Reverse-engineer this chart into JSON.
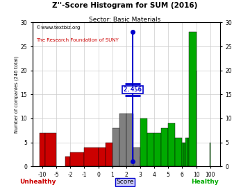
{
  "title": "Z''-Score Histogram for SUM (2016)",
  "subtitle": "Sector: Basic Materials",
  "watermark1": "©www.textbiz.org",
  "watermark2": "The Research Foundation of SUNY",
  "ylabel": "Number of companies (246 total)",
  "score_value": 2.456,
  "score_label": "2.456",
  "ylim": [
    0,
    30
  ],
  "yticks": [
    0,
    5,
    10,
    15,
    20,
    25,
    30
  ],
  "score_ticks": [
    -10,
    -5,
    -2,
    -1,
    0,
    1,
    2,
    3,
    4,
    5,
    6,
    10,
    100
  ],
  "bar_defs": [
    [
      -12,
      -9,
      7,
      "#cc0000"
    ],
    [
      -9,
      -5,
      7,
      "#cc0000"
    ],
    [
      -3,
      -2,
      2,
      "#cc0000"
    ],
    [
      -2,
      -1,
      3,
      "#cc0000"
    ],
    [
      -1,
      0,
      4,
      "#cc0000"
    ],
    [
      0,
      0.5,
      4,
      "#cc0000"
    ],
    [
      0.5,
      1,
      5,
      "#cc0000"
    ],
    [
      1,
      1.5,
      8,
      "#808080"
    ],
    [
      1.5,
      2,
      11,
      "#808080"
    ],
    [
      2,
      2.5,
      11,
      "#808080"
    ],
    [
      2.5,
      3,
      4,
      "#808080"
    ],
    [
      3,
      3.5,
      2,
      "#808080"
    ],
    [
      3,
      3.5,
      10,
      "#00aa00"
    ],
    [
      3.5,
      4,
      7,
      "#00aa00"
    ],
    [
      4,
      4.5,
      7,
      "#00aa00"
    ],
    [
      4.5,
      5,
      8,
      "#00aa00"
    ],
    [
      5,
      5.5,
      9,
      "#00aa00"
    ],
    [
      5.5,
      6,
      6,
      "#00aa00"
    ],
    [
      6,
      6.5,
      5,
      "#00aa00"
    ],
    [
      6.5,
      7,
      5,
      "#00aa00"
    ],
    [
      7,
      7.5,
      6,
      "#00aa00"
    ],
    [
      7.5,
      8,
      6,
      "#00aa00"
    ],
    [
      8,
      10,
      28,
      "#00aa00"
    ],
    [
      10,
      12,
      20,
      "#00aa00"
    ],
    [
      99,
      101,
      5,
      "#00aa00"
    ]
  ],
  "bg_color": "#ffffff",
  "grid_color": "#cccccc",
  "red": "#cc0000",
  "gray": "#808080",
  "green": "#00aa00",
  "blue": "#0000cc"
}
